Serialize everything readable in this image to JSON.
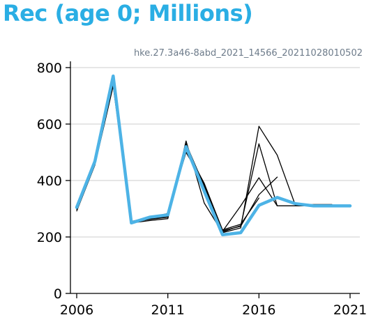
{
  "title": "Rec (age 0; Millions)",
  "subtitle": "hke.27.3a46-8abd_2021_14566_20211028010502",
  "colors": {
    "title": "#2aaee4",
    "main_series": "#4db3e6",
    "retro": "#000000",
    "grid": "#cccccc"
  },
  "chart_data": {
    "type": "line",
    "title": "Rec (age 0; Millions)",
    "xlim": [
      2006,
      2021
    ],
    "ylim": [
      0,
      800
    ],
    "x_ticks": [
      2006,
      2011,
      2016,
      2021
    ],
    "y_ticks": [
      0,
      200,
      400,
      600,
      800
    ],
    "grid": "horizontal",
    "series": [
      {
        "role": "retro",
        "x": [
          2006,
          2007,
          2008,
          2009,
          2010,
          2011,
          2012,
          2013,
          2014,
          2015,
          2016,
          2017,
          2018,
          2019,
          2020
        ],
        "y": [
          292,
          455,
          735,
          250,
          258,
          265,
          540,
          320,
          215,
          232,
          592,
          490,
          312,
          315,
          315
        ]
      },
      {
        "role": "retro",
        "x": [
          2006,
          2007,
          2008,
          2009,
          2010,
          2011,
          2012,
          2013,
          2014,
          2015,
          2016,
          2017,
          2018,
          2019
        ],
        "y": [
          298,
          460,
          745,
          252,
          262,
          270,
          530,
          380,
          218,
          240,
          530,
          310,
          310,
          310
        ]
      },
      {
        "role": "retro",
        "x": [
          2006,
          2007,
          2008,
          2009,
          2010,
          2011,
          2012,
          2013,
          2014,
          2015,
          2016,
          2017,
          2018
        ],
        "y": [
          300,
          462,
          752,
          253,
          265,
          272,
          520,
          385,
          220,
          310,
          410,
          310,
          310
        ]
      },
      {
        "role": "retro",
        "x": [
          2006,
          2007,
          2008,
          2009,
          2010,
          2011,
          2012,
          2013,
          2014,
          2015,
          2016,
          2017
        ],
        "y": [
          302,
          465,
          760,
          254,
          268,
          278,
          510,
          390,
          222,
          238,
          350,
          412
        ]
      },
      {
        "role": "retro",
        "x": [
          2006,
          2007,
          2008,
          2009,
          2010,
          2011,
          2012,
          2013,
          2014,
          2015,
          2016
        ],
        "y": [
          304,
          468,
          765,
          255,
          270,
          283,
          500,
          388,
          225,
          245,
          338
        ]
      },
      {
        "role": "main",
        "x": [
          2006,
          2007,
          2008,
          2009,
          2010,
          2011,
          2012,
          2013,
          2014,
          2015,
          2016,
          2017,
          2018,
          2019,
          2020,
          2021
        ],
        "y": [
          305,
          468,
          770,
          250,
          270,
          278,
          520,
          362,
          208,
          215,
          312,
          340,
          318,
          310,
          310,
          310
        ]
      }
    ]
  }
}
